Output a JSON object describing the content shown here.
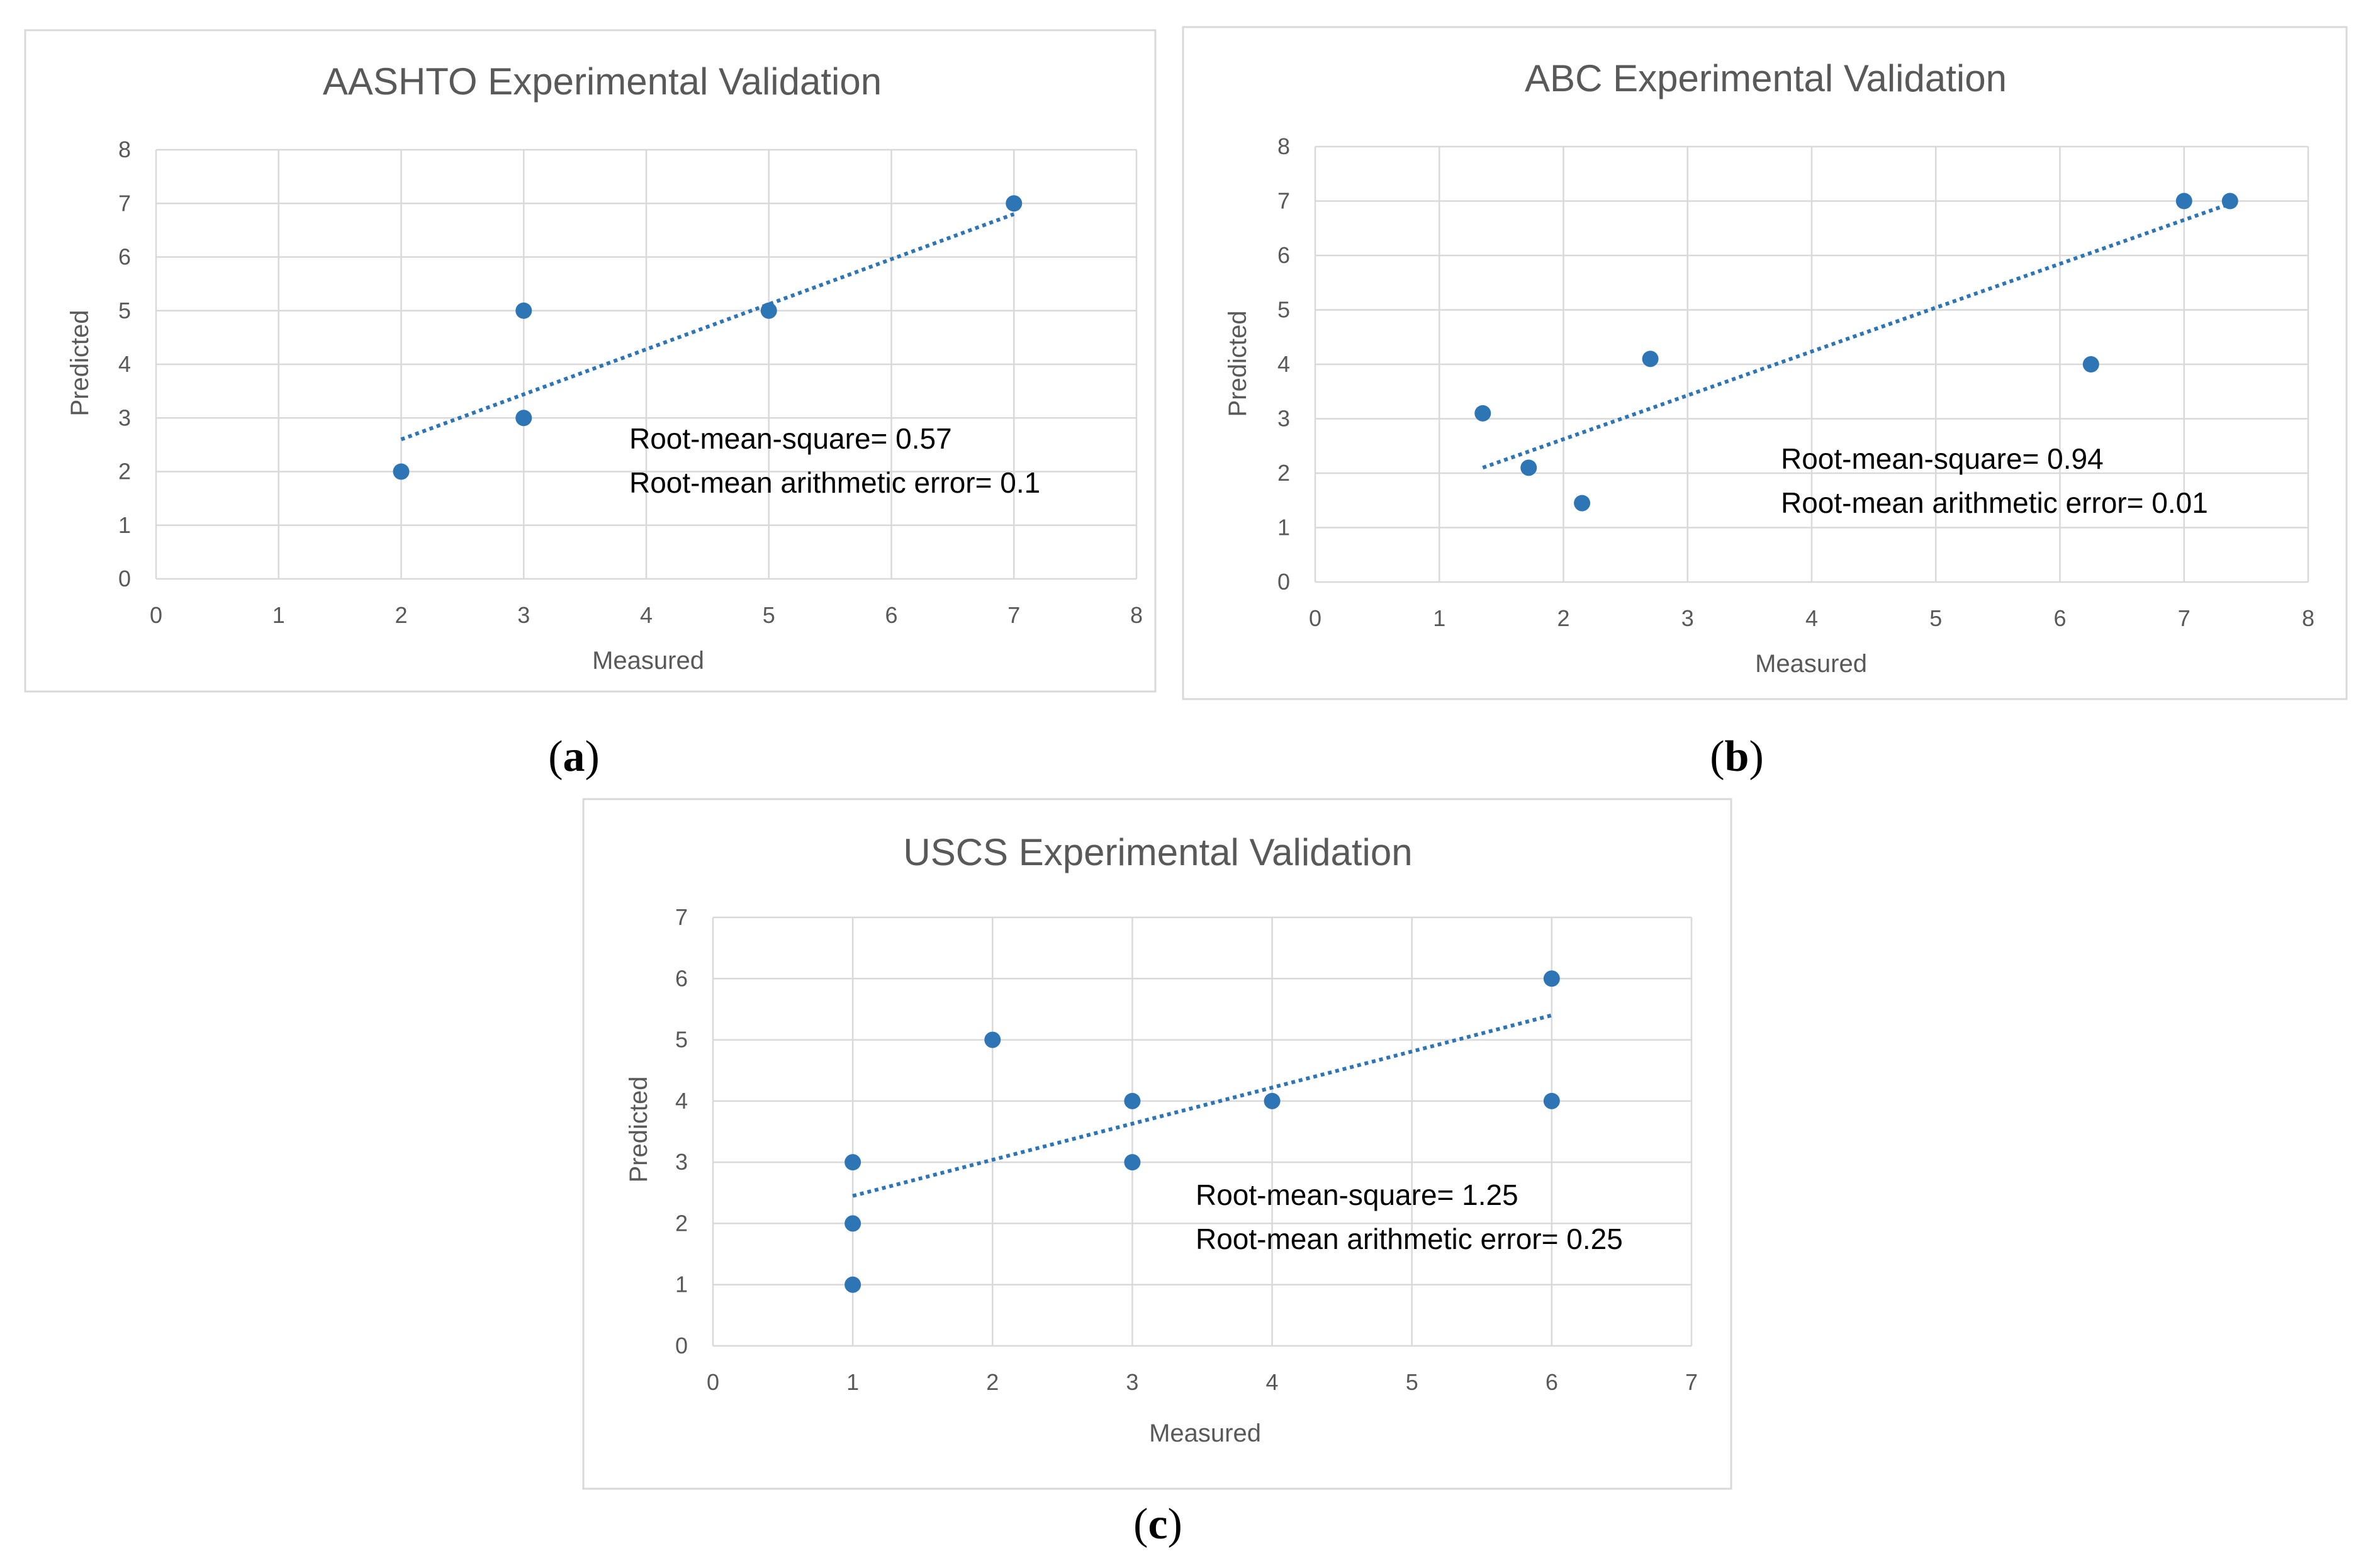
{
  "colors": {
    "series": "#2e75b6",
    "grid": "#d9d9d9",
    "text": "#595959"
  },
  "chart_data": [
    {
      "type": "scatter",
      "panel_label": "(a)",
      "title": "AASHTO Experimental Validation",
      "xlabel": "Measured",
      "ylabel": "Predicted",
      "xlim": [
        0,
        8
      ],
      "ylim": [
        0,
        8
      ],
      "xticks": [
        "0",
        "1",
        "2",
        "3",
        "4",
        "5",
        "6",
        "7",
        "8"
      ],
      "yticks": [
        "0",
        "1",
        "2",
        "3",
        "4",
        "5",
        "6",
        "7",
        "8"
      ],
      "grid": true,
      "points": [
        [
          2,
          2
        ],
        [
          3,
          3
        ],
        [
          3,
          5
        ],
        [
          5,
          5
        ],
        [
          7,
          7
        ]
      ],
      "trendline": {
        "style": "dotted",
        "from": [
          2,
          2.6
        ],
        "to": [
          7,
          6.8
        ]
      },
      "annotations": [
        "Root-mean-square= 0.57",
        "Root-mean arithmetic error= 0.1"
      ]
    },
    {
      "type": "scatter",
      "panel_label": "(b)",
      "title": "ABC Experimental Validation",
      "xlabel": "Measured",
      "ylabel": "Predicted",
      "xlim": [
        0,
        8
      ],
      "ylim": [
        0,
        8
      ],
      "xticks": [
        "0",
        "1",
        "2",
        "3",
        "4",
        "5",
        "6",
        "7",
        "8"
      ],
      "yticks": [
        "0",
        "1",
        "2",
        "3",
        "4",
        "5",
        "6",
        "7",
        "8"
      ],
      "grid": true,
      "points": [
        [
          1.35,
          3.1
        ],
        [
          1.72,
          2.1
        ],
        [
          2.15,
          1.45
        ],
        [
          2.7,
          4.1
        ],
        [
          6.25,
          4.0
        ],
        [
          7.0,
          7.0
        ],
        [
          7.37,
          7.0
        ]
      ],
      "trendline": {
        "style": "dotted",
        "from": [
          1.35,
          2.1
        ],
        "to": [
          7.37,
          6.95
        ]
      },
      "annotations": [
        "Root-mean-square= 0.94",
        "Root-mean arithmetic error= 0.01"
      ]
    },
    {
      "type": "scatter",
      "panel_label": "(c)",
      "title": "USCS Experimental Validation",
      "xlabel": "Measured",
      "ylabel": "Predicted",
      "xlim": [
        0,
        7
      ],
      "ylim": [
        0,
        7
      ],
      "xticks": [
        "0",
        "1",
        "2",
        "3",
        "4",
        "5",
        "6",
        "7"
      ],
      "yticks": [
        "0",
        "1",
        "2",
        "3",
        "4",
        "5",
        "6",
        "7"
      ],
      "grid": true,
      "points": [
        [
          1,
          1
        ],
        [
          1,
          2
        ],
        [
          1,
          3
        ],
        [
          2,
          5
        ],
        [
          3,
          3
        ],
        [
          3,
          4
        ],
        [
          4,
          4
        ],
        [
          6,
          4
        ],
        [
          6,
          6
        ]
      ],
      "trendline": {
        "style": "dotted",
        "from": [
          1,
          2.45
        ],
        "to": [
          6,
          5.4
        ]
      },
      "annotations": [
        "Root-mean-square= 1.25",
        "Root-mean arithmetic error= 0.25"
      ]
    }
  ]
}
